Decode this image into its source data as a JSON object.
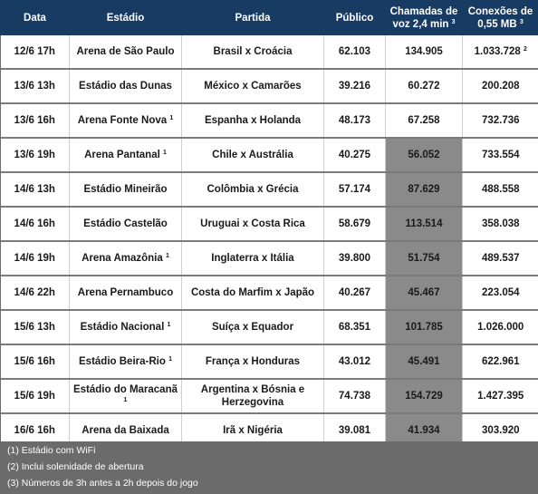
{
  "headers": {
    "data": "Data",
    "estadio": "Estádio",
    "partida": "Partida",
    "publico": "Público",
    "chamadas_line1": "Chamadas de",
    "chamadas_line2": "voz 2,4 min",
    "chamadas_sup": "3",
    "conexoes_line1": "Conexões de",
    "conexoes_line2": "0,55 MB",
    "conexoes_sup": "3"
  },
  "rows": [
    {
      "data": "12/6 17h",
      "estadio": "Arena de São Paulo",
      "estadio_sup": "",
      "partida": "Brasil x Croácia",
      "publico": "62.103",
      "chamadas": "134.905",
      "conexoes": "1.033.728",
      "conexoes_sup": "2",
      "highlight": false
    },
    {
      "data": "13/6 13h",
      "estadio": "Estádio das Dunas",
      "estadio_sup": "",
      "partida": "México x Camarões",
      "publico": "39.216",
      "chamadas": "60.272",
      "conexoes": "200.208",
      "conexoes_sup": "",
      "highlight": false
    },
    {
      "data": "13/6 16h",
      "estadio": "Arena Fonte Nova",
      "estadio_sup": "1",
      "partida": "Espanha x Holanda",
      "publico": "48.173",
      "chamadas": "67.258",
      "conexoes": "732.736",
      "conexoes_sup": "",
      "highlight": false
    },
    {
      "data": "13/6 19h",
      "estadio": "Arena Pantanal",
      "estadio_sup": "1",
      "partida": "Chile x Austrália",
      "publico": "40.275",
      "chamadas": "56.052",
      "conexoes": "733.554",
      "conexoes_sup": "",
      "highlight": true
    },
    {
      "data": "14/6 13h",
      "estadio": "Estádio Mineirão",
      "estadio_sup": "",
      "partida": "Colômbia  x Grécia",
      "publico": "57.174",
      "chamadas": "87.629",
      "conexoes": "488.558",
      "conexoes_sup": "",
      "highlight": true
    },
    {
      "data": "14/6 16h",
      "estadio": "Estádio Castelão",
      "estadio_sup": "",
      "partida": "Uruguai x Costa Rica",
      "publico": "58.679",
      "chamadas": "113.514",
      "conexoes": "358.038",
      "conexoes_sup": "",
      "highlight": true
    },
    {
      "data": "14/6 19h",
      "estadio": "Arena Amazônia",
      "estadio_sup": "1",
      "partida": "Inglaterra x Itália",
      "publico": "39.800",
      "chamadas": "51.754",
      "conexoes": "489.537",
      "conexoes_sup": "",
      "highlight": true
    },
    {
      "data": "14/6 22h",
      "estadio": "Arena Pernambuco",
      "estadio_sup": "",
      "partida": "Costa do Marfim x Japão",
      "publico": "40.267",
      "chamadas": "45.467",
      "conexoes": "223.054",
      "conexoes_sup": "",
      "highlight": true
    },
    {
      "data": "15/6 13h",
      "estadio": "Estádio Nacional",
      "estadio_sup": "1",
      "partida": "Suíça x Equador",
      "publico": "68.351",
      "chamadas": "101.785",
      "conexoes": "1.026.000",
      "conexoes_sup": "",
      "highlight": true
    },
    {
      "data": "15/6 16h",
      "estadio": "Estádio Beira-Rio",
      "estadio_sup": "1",
      "partida": "França x Honduras",
      "publico": "43.012",
      "chamadas": "45.491",
      "conexoes": "622.961",
      "conexoes_sup": "",
      "highlight": true
    },
    {
      "data": "15/6 19h",
      "estadio": "Estádio do Maracanã",
      "estadio_sup": "1",
      "partida": "Argentina x Bósnia e Herzegovina",
      "publico": "74.738",
      "chamadas": "154.729",
      "conexoes": "1.427.395",
      "conexoes_sup": "",
      "highlight": true
    },
    {
      "data": "16/6 16h",
      "estadio": "Arena da Baixada",
      "estadio_sup": "",
      "partida": "Irã x Nigéria",
      "publico": "39.081",
      "chamadas": "41.934",
      "conexoes": "303.920",
      "conexoes_sup": "",
      "highlight": true
    }
  ],
  "notes": [
    "(1) Estádio com WiFi",
    "(2) Inclui solenidade de abertura",
    "(3) Números de 3h antes a 2h depois do jogo"
  ],
  "colors": {
    "header_bg": "#173b62",
    "highlight_bg": "#8a8a8a",
    "footer_bg": "#6b6b6b"
  }
}
